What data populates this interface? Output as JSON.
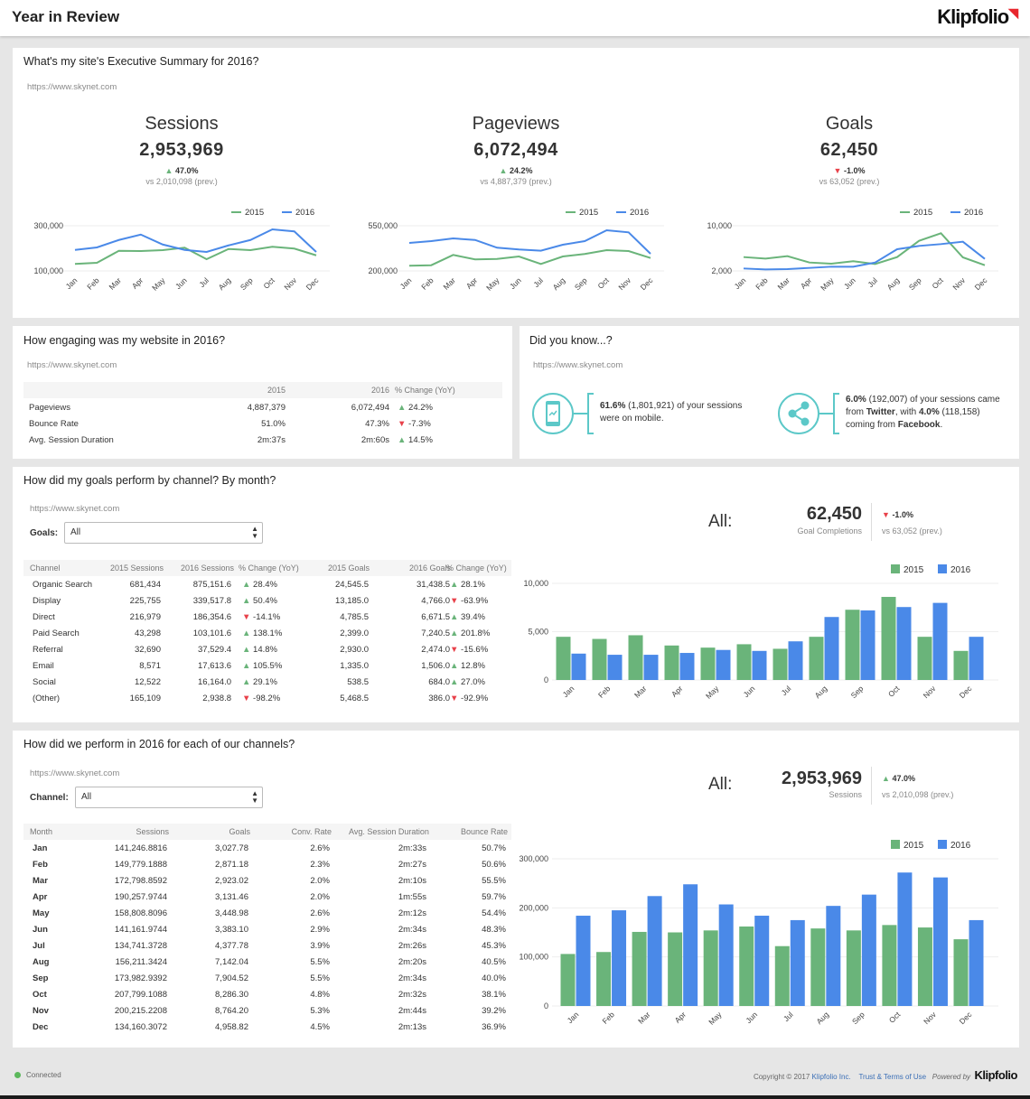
{
  "header": {
    "title": "Year in Review",
    "logo": "Klipfolio"
  },
  "colors": {
    "y2015": "#6ab47a",
    "y2016": "#4a89e8",
    "up": "#6ab47a",
    "down": "#e8414a",
    "teal": "#5cc8c8"
  },
  "summary": {
    "title": "What's my site's Executive Summary for 2016?",
    "url": "https://www.skynet.com",
    "kpis": [
      {
        "label": "Sessions",
        "value": "2,953,969",
        "dir": "up",
        "change": "47.0%",
        "prev": "vs 2,010,098 (prev.)"
      },
      {
        "label": "Pageviews",
        "value": "6,072,494",
        "dir": "up",
        "change": "24.2%",
        "prev": "vs 4,887,379 (prev.)"
      },
      {
        "label": "Goals",
        "value": "62,450",
        "dir": "down",
        "change": "-1.0%",
        "prev": "vs 63,052 (prev.)"
      }
    ]
  },
  "engagement": {
    "title": "How engaging was my website in 2016?",
    "url": "https://www.skynet.com",
    "columns": [
      "",
      "2015",
      "2016",
      "% Change (YoY)"
    ],
    "rows": [
      {
        "metric": "Pageviews",
        "y2015": "4,887,379",
        "y2016": "6,072,494",
        "dir": "up",
        "change": "24.2%"
      },
      {
        "metric": "Bounce Rate",
        "y2015": "51.0%",
        "y2016": "47.3%",
        "dir": "down",
        "change": "-7.3%"
      },
      {
        "metric": "Avg. Session Duration",
        "y2015": "2m:37s",
        "y2016": "2m:60s",
        "dir": "up",
        "change": "14.5%"
      }
    ]
  },
  "did_you_know": {
    "title": "Did you know...?",
    "url": "https://www.skynet.com",
    "mobile": {
      "icon": "mobile-phone-icon",
      "pct": "61.6%",
      "count": " (1,801,921) of your sessions were on mobile."
    },
    "social": {
      "icon": "share-icon",
      "pct": "6.0%",
      "text1": " (192,007) of your sessions came from ",
      "twitter": "Twitter",
      "text2": ", with ",
      "pct2": "4.0%",
      "text3": " (118,158) coming from ",
      "facebook": "Facebook",
      "text4": "."
    }
  },
  "goals": {
    "title": "How did my goals perform by channel? By month?",
    "url": "https://www.skynet.com",
    "filter_label": "Goals:",
    "filter_value": "All",
    "columns": [
      "Channel",
      "2015 Sessions",
      "2016 Sessions",
      "% Change (YoY)",
      "2015 Goals",
      "2016 Goals",
      "% Change (YoY)"
    ],
    "rows": [
      [
        "Organic Search",
        "681,434",
        "875,151.6",
        "up",
        "28.4%",
        "24,545.5",
        "31,438.5",
        "up",
        "28.1%"
      ],
      [
        "Display",
        "225,755",
        "339,517.8",
        "up",
        "50.4%",
        "13,185.0",
        "4,766.0",
        "down",
        "-63.9%"
      ],
      [
        "Direct",
        "216,979",
        "186,354.6",
        "down",
        "-14.1%",
        "4,785.5",
        "6,671.5",
        "up",
        "39.4%"
      ],
      [
        "Paid Search",
        "43,298",
        "103,101.6",
        "up",
        "138.1%",
        "2,399.0",
        "7,240.5",
        "up",
        "201.8%"
      ],
      [
        "Referral",
        "32,690",
        "37,529.4",
        "up",
        "14.8%",
        "2,930.0",
        "2,474.0",
        "down",
        "-15.6%"
      ],
      [
        "Email",
        "8,571",
        "17,613.6",
        "up",
        "105.5%",
        "1,335.0",
        "1,506.0",
        "up",
        "12.8%"
      ],
      [
        "Social",
        "12,522",
        "16,164.0",
        "up",
        "29.1%",
        "538.5",
        "684.0",
        "up",
        "27.0%"
      ],
      [
        "(Other)",
        "165,109",
        "2,938.8",
        "down",
        "-98.2%",
        "5,468.5",
        "386.0",
        "down",
        "-92.9%"
      ]
    ],
    "kpi": {
      "all_label": "All:",
      "value": "62,450",
      "sublabel": "Goal Completions",
      "dir": "down",
      "change": "-1.0%",
      "prev": "vs 63,052 (prev.)"
    }
  },
  "channels": {
    "title": "How did we perform in 2016 for each of our channels?",
    "url": "https://www.skynet.com",
    "filter_label": "Channel:",
    "filter_value": "All",
    "columns": [
      "Month",
      "Sessions",
      "Goals",
      "Conv. Rate",
      "Avg. Session Duration",
      "Bounce Rate"
    ],
    "rows": [
      [
        "Jan",
        "141,246.8816",
        "3,027.78",
        "2.6%",
        "2m:33s",
        "50.7%"
      ],
      [
        "Feb",
        "149,779.1888",
        "2,871.18",
        "2.3%",
        "2m:27s",
        "50.6%"
      ],
      [
        "Mar",
        "172,798.8592",
        "2,923.02",
        "2.0%",
        "2m:10s",
        "55.5%"
      ],
      [
        "Apr",
        "190,257.9744",
        "3,131.46",
        "2.0%",
        "1m:55s",
        "59.7%"
      ],
      [
        "May",
        "158,808.8096",
        "3,448.98",
        "2.6%",
        "2m:12s",
        "54.4%"
      ],
      [
        "Jun",
        "141,161.9744",
        "3,383.10",
        "2.9%",
        "2m:34s",
        "48.3%"
      ],
      [
        "Jul",
        "134,741.3728",
        "4,377.78",
        "3.9%",
        "2m:26s",
        "45.3%"
      ],
      [
        "Aug",
        "156,211.3424",
        "7,142.04",
        "5.5%",
        "2m:20s",
        "40.5%"
      ],
      [
        "Sep",
        "173,982.9392",
        "7,904.52",
        "5.5%",
        "2m:34s",
        "40.0%"
      ],
      [
        "Oct",
        "207,799.1088",
        "8,286.30",
        "4.8%",
        "2m:32s",
        "38.1%"
      ],
      [
        "Nov",
        "200,215.2208",
        "8,764.20",
        "5.3%",
        "2m:44s",
        "39.2%"
      ],
      [
        "Dec",
        "134,160.3072",
        "4,958.82",
        "4.5%",
        "2m:13s",
        "36.9%"
      ]
    ],
    "kpi": {
      "all_label": "All:",
      "value": "2,953,969",
      "sublabel": "Sessions",
      "dir": "up",
      "change": "47.0%",
      "prev": "vs 2,010,098 (prev.)"
    }
  },
  "chart_data": [
    {
      "type": "line",
      "categories": [
        "Jan",
        "Feb",
        "Mar",
        "Apr",
        "May",
        "Jun",
        "Jul",
        "Aug",
        "Sep",
        "Oct",
        "Nov",
        "Dec"
      ],
      "yticks": [
        100000,
        300000
      ],
      "ytick_labels": [
        "100,000",
        "300,000"
      ],
      "legend": "top-right",
      "grid": true,
      "series": [
        {
          "name": "2015",
          "values": [
            131000,
            136000,
            189000,
            188000,
            192000,
            203000,
            152000,
            197000,
            192000,
            207000,
            199000,
            169000
          ]
        },
        {
          "name": "2016",
          "values": [
            193000,
            204000,
            237000,
            261000,
            217000,
            193000,
            184000,
            213000,
            237000,
            284000,
            275000,
            184000
          ]
        }
      ]
    },
    {
      "type": "line",
      "categories": [
        "Jan",
        "Feb",
        "Mar",
        "Apr",
        "May",
        "Jun",
        "Jul",
        "Aug",
        "Sep",
        "Oct",
        "Nov",
        "Dec"
      ],
      "yticks": [
        200000,
        550000
      ],
      "ytick_labels": [
        "200,000",
        "550,000"
      ],
      "legend": "top-right",
      "grid": true,
      "series": [
        {
          "name": "2015",
          "values": [
            240000,
            244000,
            324000,
            289000,
            293000,
            312000,
            254000,
            312000,
            331000,
            361000,
            354000,
            300000
          ]
        },
        {
          "name": "2016",
          "values": [
            417000,
            431000,
            452000,
            440000,
            380000,
            366000,
            357000,
            403000,
            431000,
            515000,
            499000,
            333000
          ]
        }
      ]
    },
    {
      "type": "line",
      "categories": [
        "Jan",
        "Feb",
        "Mar",
        "Apr",
        "May",
        "Jun",
        "Jul",
        "Aug",
        "Sep",
        "Oct",
        "Nov",
        "Dec"
      ],
      "yticks": [
        2000,
        10000
      ],
      "ytick_labels": [
        "2,000",
        "10,000"
      ],
      "legend": "top-right",
      "grid": true,
      "series": [
        {
          "name": "2015",
          "values": [
            4450,
            4190,
            4610,
            3490,
            3280,
            3710,
            3230,
            4450,
            7330,
            8670,
            4400,
            3010
          ]
        },
        {
          "name": "2016",
          "values": [
            2430,
            2270,
            2320,
            2530,
            2750,
            2750,
            3490,
            5840,
            6430,
            6750,
            7170,
            4130
          ]
        }
      ]
    },
    {
      "type": "bar",
      "categories": [
        "Jan",
        "Feb",
        "Mar",
        "Apr",
        "May",
        "Jun",
        "Jul",
        "Aug",
        "Sep",
        "Oct",
        "Nov",
        "Dec"
      ],
      "ylim": [
        0,
        10000
      ],
      "yticks": [
        0,
        5000,
        10000
      ],
      "ytick_labels": [
        "0",
        "5,000",
        "10,000"
      ],
      "legend": "top-right",
      "grid": true,
      "series": [
        {
          "name": "2015",
          "values": [
            4470,
            4250,
            4630,
            3570,
            3350,
            3700,
            3230,
            4470,
            7270,
            8600,
            4470,
            3010
          ]
        },
        {
          "name": "2016",
          "values": [
            2730,
            2610,
            2610,
            2800,
            3110,
            3010,
            4000,
            6520,
            7200,
            7550,
            7980,
            4470
          ]
        }
      ]
    },
    {
      "type": "bar",
      "categories": [
        "Jan",
        "Feb",
        "Mar",
        "Apr",
        "May",
        "Jun",
        "Jul",
        "Aug",
        "Sep",
        "Oct",
        "Nov",
        "Dec"
      ],
      "ylim": [
        0,
        300000
      ],
      "yticks": [
        0,
        100000,
        200000,
        300000
      ],
      "ytick_labels": [
        "0",
        "100,000",
        "200,000",
        "300,000"
      ],
      "legend": "top-right",
      "grid": true,
      "series": [
        {
          "name": "2015",
          "values": [
            106000,
            110000,
            151000,
            150000,
            154000,
            162000,
            122000,
            158000,
            154000,
            165000,
            160000,
            136000
          ]
        },
        {
          "name": "2016",
          "values": [
            184000,
            195000,
            224000,
            248000,
            207000,
            184000,
            175000,
            204000,
            227000,
            272000,
            262000,
            175000
          ]
        }
      ]
    }
  ],
  "footer": {
    "status": "Connected",
    "copyright": "Copyright © 2017 ",
    "company": "Klipfolio Inc.",
    "terms": "Trust & Terms of Use",
    "powered": "Powered by",
    "logo": "Klipfolio"
  }
}
